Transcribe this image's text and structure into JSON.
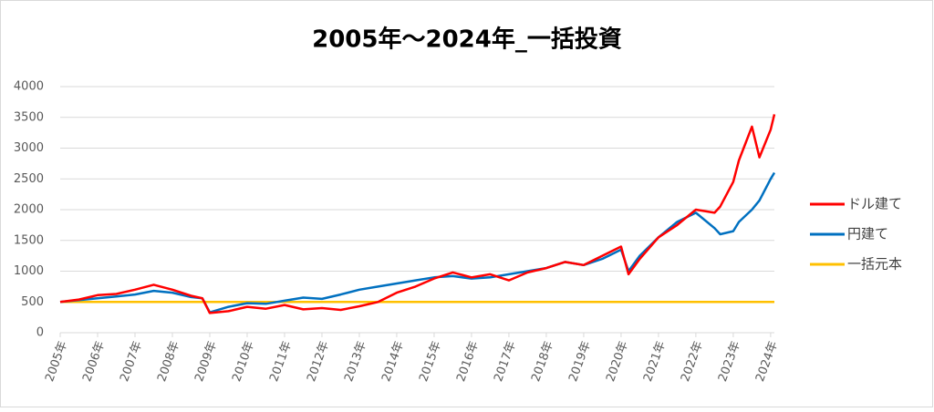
{
  "chart_data": {
    "type": "line",
    "title": "2005年～2024年_一括投資",
    "x": [
      2005,
      2005.5,
      2006,
      2006.5,
      2007,
      2007.5,
      2008,
      2008.5,
      2008.8,
      2009,
      2009.5,
      2010,
      2010.5,
      2011,
      2011.5,
      2012,
      2012.5,
      2013,
      2013.5,
      2014,
      2014.5,
      2015,
      2015.5,
      2016,
      2016.5,
      2017,
      2017.5,
      2018,
      2018.5,
      2019,
      2019.5,
      2020,
      2020.2,
      2020.5,
      2021,
      2021.5,
      2022,
      2022.5,
      2022.65,
      2023,
      2023.15,
      2023.5,
      2023.7,
      2024,
      2024.1
    ],
    "series": [
      {
        "name": "ドル建て",
        "color": "#ff0000",
        "values": [
          500,
          540,
          610,
          630,
          700,
          780,
          700,
          600,
          560,
          320,
          350,
          420,
          390,
          450,
          380,
          400,
          370,
          430,
          500,
          650,
          750,
          880,
          980,
          900,
          950,
          850,
          980,
          1050,
          1150,
          1100,
          1250,
          1400,
          950,
          1200,
          1550,
          1750,
          2000,
          1950,
          2050,
          2450,
          2800,
          3350,
          2850,
          3300,
          3550
        ]
      },
      {
        "name": "円建て",
        "color": "#0070c0",
        "values": [
          500,
          530,
          560,
          590,
          620,
          680,
          650,
          580,
          560,
          330,
          420,
          480,
          470,
          520,
          570,
          550,
          620,
          700,
          750,
          800,
          850,
          900,
          920,
          880,
          900,
          950,
          1000,
          1050,
          1150,
          1100,
          1200,
          1350,
          1000,
          1250,
          1550,
          1800,
          1950,
          1700,
          1600,
          1650,
          1800,
          2000,
          2150,
          2500,
          2600
        ]
      },
      {
        "name": "一括元本",
        "color": "#ffc000",
        "values": [
          500,
          500,
          500,
          500,
          500,
          500,
          500,
          500,
          500,
          500,
          500,
          500,
          500,
          500,
          500,
          500,
          500,
          500,
          500,
          500,
          500,
          500,
          500,
          500,
          500,
          500,
          500,
          500,
          500,
          500,
          500,
          500,
          500,
          500,
          500,
          500,
          500,
          500,
          500,
          500,
          500,
          500,
          500,
          500,
          500
        ]
      }
    ],
    "xlim": [
      2005,
      2024.1
    ],
    "xticks": [
      {
        "value": 2005,
        "label": "2005年"
      },
      {
        "value": 2006,
        "label": "2006年"
      },
      {
        "value": 2007,
        "label": "2007年"
      },
      {
        "value": 2008,
        "label": "2008年"
      },
      {
        "value": 2009,
        "label": "2009年"
      },
      {
        "value": 2010,
        "label": "2010年"
      },
      {
        "value": 2011,
        "label": "2011年"
      },
      {
        "value": 2012,
        "label": "2012年"
      },
      {
        "value": 2013,
        "label": "2013年"
      },
      {
        "value": 2014,
        "label": "2014年"
      },
      {
        "value": 2015,
        "label": "2015年"
      },
      {
        "value": 2016,
        "label": "2016年"
      },
      {
        "value": 2017,
        "label": "2017年"
      },
      {
        "value": 2018,
        "label": "2018年"
      },
      {
        "value": 2019,
        "label": "2019年"
      },
      {
        "value": 2020,
        "label": "2020年"
      },
      {
        "value": 2021,
        "label": "2021年"
      },
      {
        "value": 2022,
        "label": "2022年"
      },
      {
        "value": 2023,
        "label": "2023年"
      },
      {
        "value": 2024,
        "label": "2024年"
      }
    ],
    "ylim": [
      0,
      4000
    ],
    "yticks": [
      0,
      500,
      1000,
      1500,
      2000,
      2500,
      3000,
      3500,
      4000
    ],
    "grid": true,
    "legend": "right"
  }
}
